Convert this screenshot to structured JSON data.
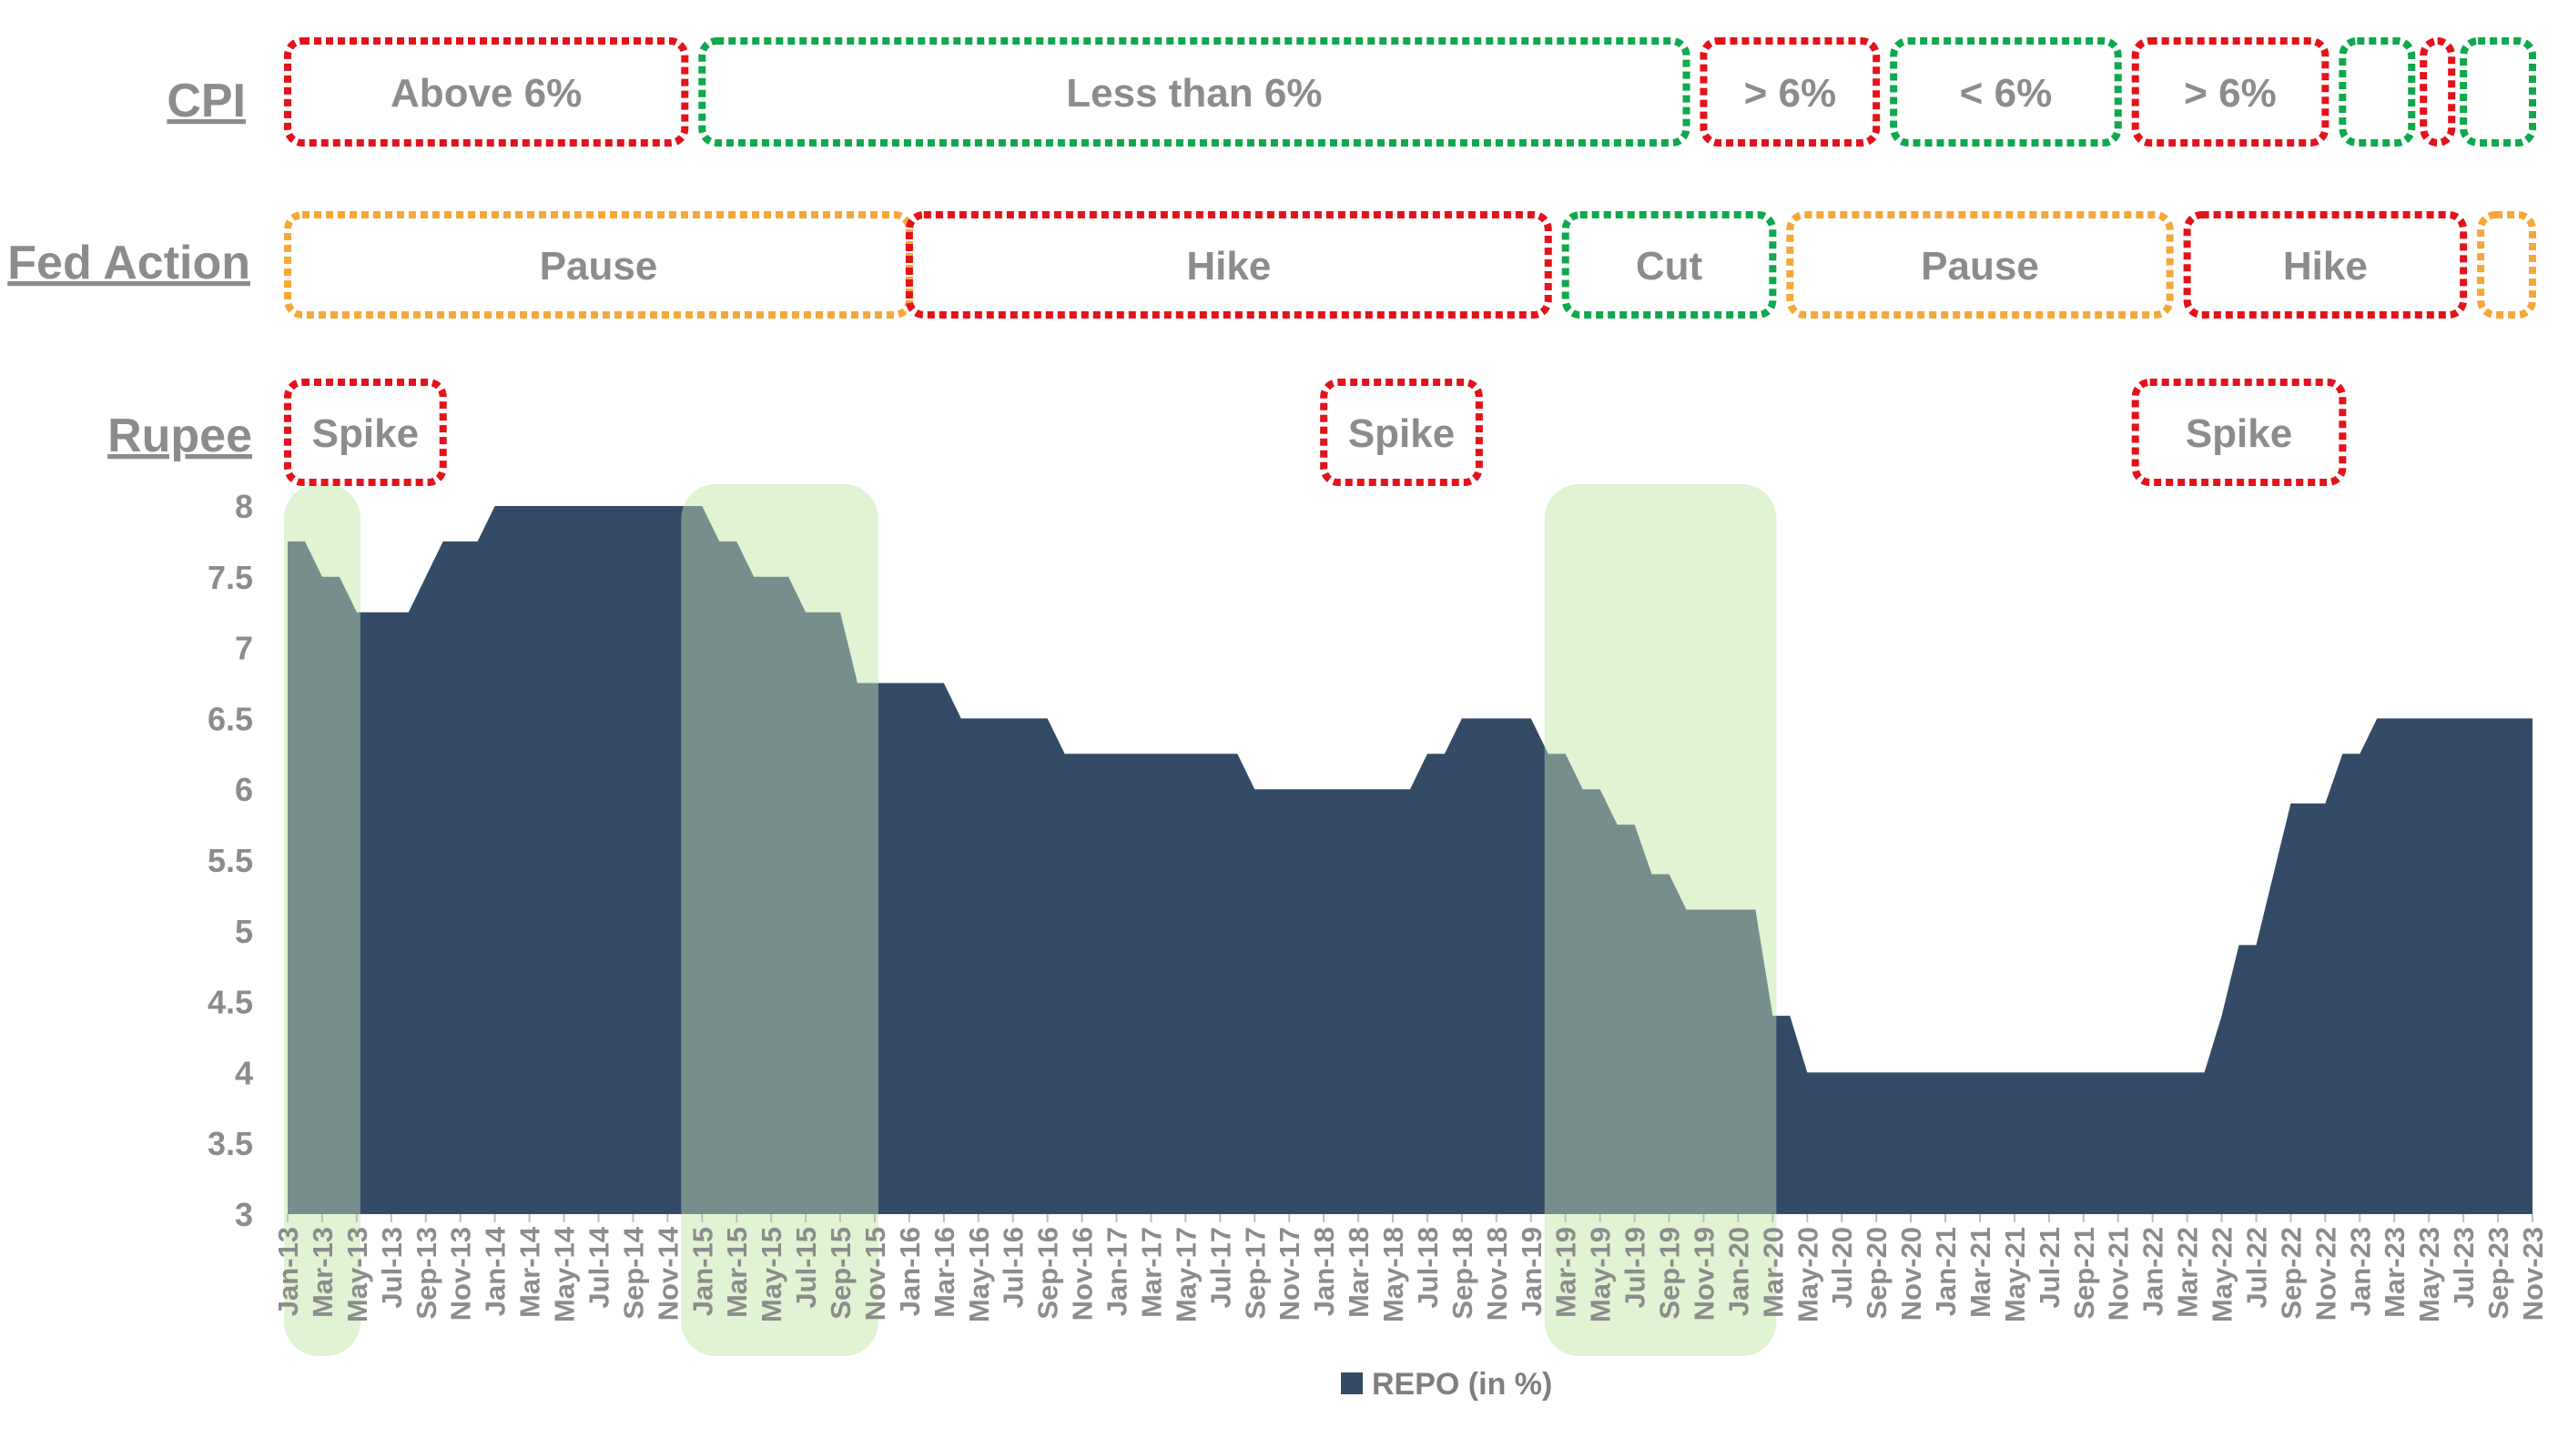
{
  "colors": {
    "repo_fill": "#334b66",
    "highlight": "#d5efc2",
    "text": "#8c8c8c",
    "cpi_above": "#e3121b",
    "cpi_below": "#0fa84d",
    "fed_pause": "#f5a838",
    "fed_hike": "#e3121b",
    "fed_cut": "#0fa84d",
    "rupee_spike": "#e3121b"
  },
  "rows": {
    "cpi": "CPI",
    "fed": "Fed Action",
    "rupee": "Rupee"
  },
  "cpi_segments": [
    {
      "label": "Above 6%",
      "color": "#e3121b",
      "from": "Jan-13",
      "to": "Dec-14"
    },
    {
      "label": "Less than 6%",
      "color": "#0fa84d",
      "from": "Jan-15",
      "to": "Oct-19"
    },
    {
      "label": "> 6%",
      "color": "#e3121b",
      "from": "Nov-19",
      "to": "Sep-20"
    },
    {
      "label": "< 6%",
      "color": "#0fa84d",
      "from": "Oct-20",
      "to": "Nov-21"
    },
    {
      "label": "> 6%",
      "color": "#e3121b",
      "from": "Dec-21",
      "to": "Nov-22"
    },
    {
      "label": "",
      "color": "#0fa84d",
      "from": "Dec-22",
      "to": "Apr-23"
    },
    {
      "label": "",
      "color": "#e3121b",
      "from": "May-23",
      "to": "Jun-23"
    },
    {
      "label": "",
      "color": "#0fa84d",
      "from": "Jul-23",
      "to": "Nov-23"
    }
  ],
  "fed_segments": [
    {
      "label": "Pause",
      "color": "#f5a838",
      "from": "Jan-13",
      "to": "Jan-16"
    },
    {
      "label": "Hike",
      "color": "#e3121b",
      "from": "Jan-16",
      "to": "Feb-19"
    },
    {
      "label": "Cut",
      "color": "#0fa84d",
      "from": "Mar-19",
      "to": "Mar-20"
    },
    {
      "label": "Pause",
      "color": "#f5a838",
      "from": "Apr-20",
      "to": "Feb-22"
    },
    {
      "label": "Hike",
      "color": "#e3121b",
      "from": "Mar-22",
      "to": "Jul-23"
    },
    {
      "label": "",
      "color": "#f5a838",
      "from": "Aug-23",
      "to": "Nov-23"
    }
  ],
  "rupee_segments": [
    {
      "label": "Spike",
      "color": "#e3121b",
      "from": "Jan-13",
      "to": "Oct-13"
    },
    {
      "label": "Spike",
      "color": "#e3121b",
      "from": "Jan-18",
      "to": "Oct-18"
    },
    {
      "label": "Spike",
      "color": "#e3121b",
      "from": "Dec-21",
      "to": "Dec-22"
    }
  ],
  "highlight_periods": [
    {
      "from": "Jan-13",
      "to": "May-13"
    },
    {
      "from": "Dec-14",
      "to": "Nov-15"
    },
    {
      "from": "Feb-19",
      "to": "Mar-20"
    }
  ],
  "chart_data": {
    "type": "area",
    "title": "",
    "xlabel": "",
    "ylabel": "",
    "ylim": [
      3,
      8
    ],
    "yticks": [
      "3",
      "3.5",
      "4",
      "4.5",
      "5",
      "5.5",
      "6",
      "6.5",
      "7",
      "7.5",
      "8"
    ],
    "tick_labels": [
      "Jan-13",
      "Mar-13",
      "May-13",
      "Jul-13",
      "Sep-13",
      "Nov-13",
      "Jan-14",
      "Mar-14",
      "May-14",
      "Jul-14",
      "Sep-14",
      "Nov-14",
      "Jan-15",
      "Mar-15",
      "May-15",
      "Jul-15",
      "Sep-15",
      "Nov-15",
      "Jan-16",
      "Mar-16",
      "May-16",
      "Jul-16",
      "Sep-16",
      "Nov-16",
      "Jan-17",
      "Mar-17",
      "May-17",
      "Jul-17",
      "Sep-17",
      "Nov-17",
      "Jan-18",
      "Mar-18",
      "May-18",
      "Jul-18",
      "Sep-18",
      "Nov-18",
      "Jan-19",
      "Mar-19",
      "May-19",
      "Jul-19",
      "Sep-19",
      "Nov-19",
      "Jan-20",
      "Mar-20",
      "May-20",
      "Jul-20",
      "Sep-20",
      "Nov-20",
      "Jan-21",
      "Mar-21",
      "May-21",
      "Jul-21",
      "Sep-21",
      "Nov-21",
      "Jan-22",
      "Mar-22",
      "May-22",
      "Jul-22",
      "Sep-22",
      "Nov-22",
      "Jan-23",
      "Mar-23",
      "May-23",
      "Jul-23",
      "Sep-23",
      "Nov-23"
    ],
    "legend": "REPO (in %)",
    "legend_position": "bottom",
    "series": [
      {
        "name": "REPO (in %)",
        "start": "Jan-13",
        "values": [
          7.75,
          7.75,
          7.5,
          7.5,
          7.25,
          7.25,
          7.25,
          7.25,
          7.5,
          7.75,
          7.75,
          7.75,
          8,
          8,
          8,
          8,
          8,
          8,
          8,
          8,
          8,
          8,
          8,
          8,
          8,
          7.75,
          7.75,
          7.5,
          7.5,
          7.5,
          7.25,
          7.25,
          7.25,
          6.75,
          6.75,
          6.75,
          6.75,
          6.75,
          6.75,
          6.5,
          6.5,
          6.5,
          6.5,
          6.5,
          6.5,
          6.25,
          6.25,
          6.25,
          6.25,
          6.25,
          6.25,
          6.25,
          6.25,
          6.25,
          6.25,
          6.25,
          6,
          6,
          6,
          6,
          6,
          6,
          6,
          6,
          6,
          6,
          6.25,
          6.25,
          6.5,
          6.5,
          6.5,
          6.5,
          6.5,
          6.25,
          6.25,
          6,
          6,
          5.75,
          5.75,
          5.4,
          5.4,
          5.15,
          5.15,
          5.15,
          5.15,
          5.15,
          4.4,
          4.4,
          4,
          4,
          4,
          4,
          4,
          4,
          4,
          4,
          4,
          4,
          4,
          4,
          4,
          4,
          4,
          4,
          4,
          4,
          4,
          4,
          4,
          4,
          4,
          4,
          4.4,
          4.9,
          4.9,
          5.4,
          5.9,
          5.9,
          5.9,
          6.25,
          6.25,
          6.5,
          6.5,
          6.5,
          6.5,
          6.5,
          6.5,
          6.5,
          6.5,
          6.5,
          6.5
        ]
      }
    ]
  }
}
